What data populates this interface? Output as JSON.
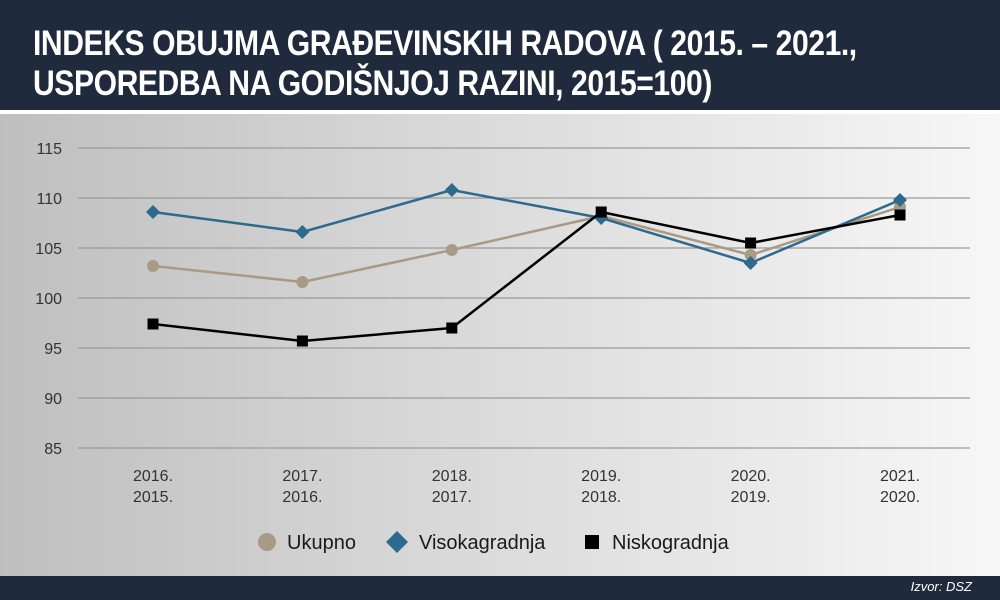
{
  "chart_data": {
    "type": "line",
    "title": "INDEKS OBUJMA GRAĐEVINSKIH RADOVA ( 2015. – 2021., USPOREDBA NA GODIŠNJOJ RAZINI, 2015=100)",
    "title_lines": [
      "INDEKS OBUJMA GRAĐEVINSKIH RADOVA ( 2015. – 2021.,",
      "USPOREDBA NA GODIŠNJOJ RAZINI, 2015=100)"
    ],
    "categories": [
      [
        "2016.",
        "2015."
      ],
      [
        "2017.",
        "2016."
      ],
      [
        "2018.",
        "2017."
      ],
      [
        "2019.",
        "2018."
      ],
      [
        "2020.",
        "2019."
      ],
      [
        "2021.",
        "2020."
      ]
    ],
    "ylim": [
      85,
      115
    ],
    "yticks": [
      85,
      90,
      95,
      100,
      105,
      110,
      115
    ],
    "grid": true,
    "legend_position": "bottom",
    "series": [
      {
        "name": "Ukupno",
        "marker": "circle",
        "color": "#a89a85",
        "values": [
          103.2,
          101.6,
          104.8,
          108.2,
          104.3,
          109.1
        ]
      },
      {
        "name": "Visokagradnja",
        "marker": "diamond",
        "color": "#2e6a8e",
        "values": [
          108.6,
          106.6,
          110.8,
          108.0,
          103.5,
          109.8
        ]
      },
      {
        "name": "Niskogradnja",
        "marker": "square",
        "color": "#000000",
        "values": [
          97.4,
          95.7,
          97.0,
          108.6,
          105.5,
          108.3
        ]
      }
    ],
    "source": "Izvor: DSZ"
  }
}
